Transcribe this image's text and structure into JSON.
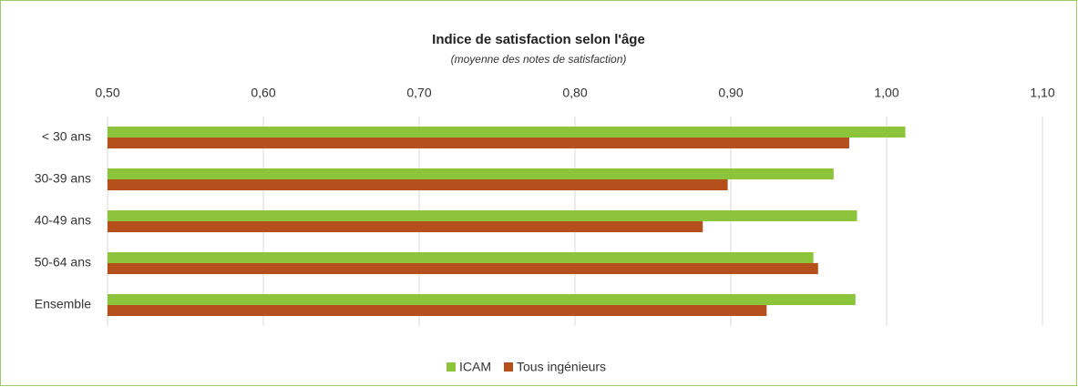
{
  "chart_data": {
    "type": "hbar",
    "title": "Indice de satisfaction selon l'âge",
    "subtitle": "(moyenne des notes de satisfaction)",
    "categories": [
      "< 30 ans",
      "30-39 ans",
      "40-49 ans",
      "50-64 ans",
      "Ensemble"
    ],
    "series": [
      {
        "name": "ICAM",
        "color": "#8cc43c",
        "values": [
          1.012,
          0.966,
          0.981,
          0.953,
          0.98
        ]
      },
      {
        "name": "Tous ingénieurs",
        "color": "#b5501c",
        "values": [
          0.976,
          0.898,
          0.882,
          0.956,
          0.923
        ]
      }
    ],
    "xlim": [
      0.5,
      1.1
    ],
    "xticks": [
      {
        "value": 0.5,
        "label": "0,50"
      },
      {
        "value": 0.6,
        "label": "0,60"
      },
      {
        "value": 0.7,
        "label": "0,70"
      },
      {
        "value": 0.8,
        "label": "0,80"
      },
      {
        "value": 0.9,
        "label": "0,90"
      },
      {
        "value": 1.0,
        "label": "1,00"
      },
      {
        "value": 1.1,
        "label": "1,10"
      }
    ],
    "grid": true,
    "legend": "bottom"
  }
}
